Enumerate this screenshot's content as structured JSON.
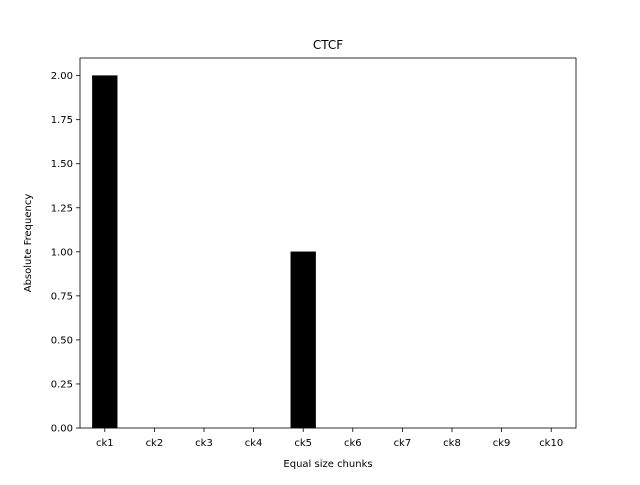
{
  "chart_data": {
    "type": "bar",
    "title": "CTCF",
    "xlabel": "Equal size chunks",
    "ylabel": "Absolute Frequency",
    "categories": [
      "ck1",
      "ck2",
      "ck3",
      "ck4",
      "ck5",
      "ck6",
      "ck7",
      "ck8",
      "ck9",
      "ck10"
    ],
    "values": [
      2,
      0,
      0,
      0,
      1,
      0,
      0,
      0,
      0,
      0
    ],
    "ylim": [
      0,
      2.1
    ],
    "yticks": [
      "0.00",
      "0.25",
      "0.50",
      "0.75",
      "1.00",
      "1.25",
      "1.50",
      "1.75",
      "2.00"
    ],
    "grid": false,
    "legend": "none",
    "colors": {
      "bar": "#000000",
      "background": "#ffffff",
      "axis": "#000000"
    }
  }
}
